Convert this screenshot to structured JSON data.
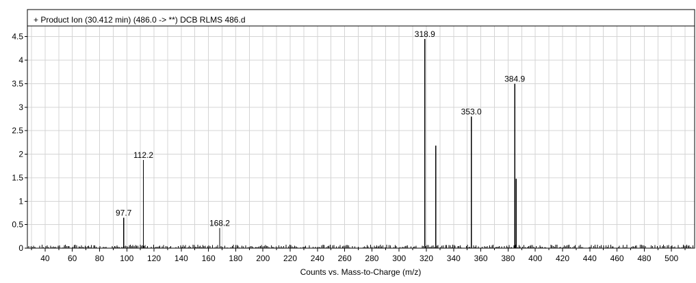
{
  "chart_data": {
    "type": "bar",
    "title": "+ Product Ion (30.412 min) (486.0 -> **) DCB RLMS 486.d",
    "xlabel": "Counts vs. Mass-to-Charge (m/z)",
    "ylabel": "",
    "xlim": [
      27,
      517
    ],
    "ylim": [
      0,
      4.7
    ],
    "grid": true,
    "x_ticks": [
      40,
      60,
      80,
      100,
      120,
      140,
      160,
      180,
      200,
      220,
      240,
      260,
      280,
      300,
      320,
      340,
      360,
      380,
      400,
      420,
      440,
      460,
      480,
      500
    ],
    "y_ticks": [
      0,
      0.5,
      1,
      1.5,
      2,
      2.5,
      3,
      3.5,
      4,
      4.5
    ],
    "peaks": [
      {
        "x": 97.7,
        "y": 0.65,
        "label": "97.7"
      },
      {
        "x": 112.2,
        "y": 1.88,
        "label": "112.2"
      },
      {
        "x": 168.2,
        "y": 0.43,
        "label": "168.2"
      },
      {
        "x": 318.9,
        "y": 4.45,
        "label": "318.9"
      },
      {
        "x": 327.0,
        "y": 2.18,
        "label": ""
      },
      {
        "x": 353.0,
        "y": 2.8,
        "label": "353.0"
      },
      {
        "x": 384.9,
        "y": 3.5,
        "label": "384.9"
      },
      {
        "x": 386.0,
        "y": 1.48,
        "label": ""
      }
    ],
    "noise_level": 0.05
  }
}
